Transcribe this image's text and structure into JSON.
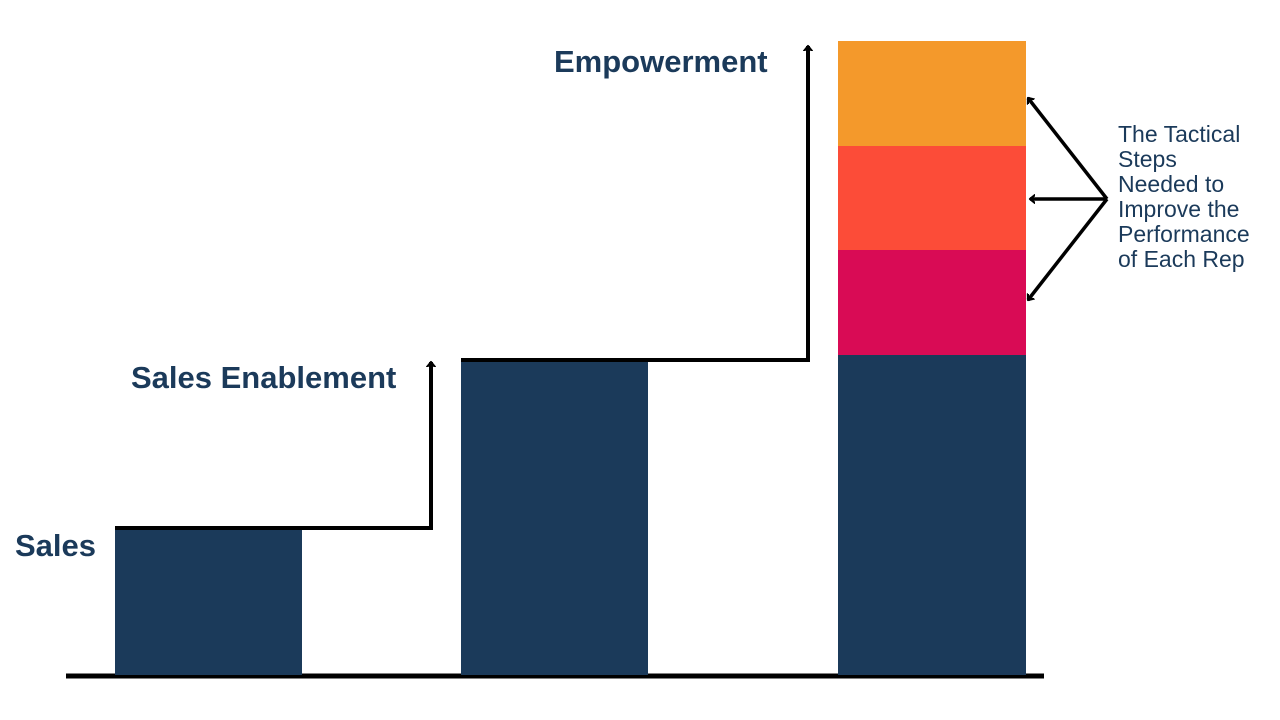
{
  "colors": {
    "navy": "#1b3a5a",
    "magenta": "#d90b55",
    "coral": "#fc4c38",
    "orange": "#f4992b",
    "line": "#000000",
    "background": "#ffffff"
  },
  "stages": [
    {
      "label": "Sales",
      "level": 1
    },
    {
      "label": "Sales Enablement",
      "level": 2
    },
    {
      "label": "Empowerment",
      "level": 3
    }
  ],
  "empowerment_segments": [
    {
      "name": "base",
      "color": "#1b3a5a"
    },
    {
      "name": "step-1",
      "color": "#d90b55"
    },
    {
      "name": "step-2",
      "color": "#fc4c38"
    },
    {
      "name": "step-3",
      "color": "#f4992b"
    }
  ],
  "annotation": {
    "lines": [
      "The Tactical",
      "Steps",
      "Needed to",
      "Improve the",
      "Performance",
      "of Each Rep"
    ]
  }
}
